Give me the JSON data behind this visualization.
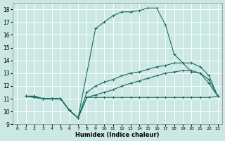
{
  "xlabel": "Humidex (Indice chaleur)",
  "xlim": [
    -0.5,
    23.5
  ],
  "ylim": [
    9,
    18.5
  ],
  "xticks": [
    0,
    1,
    2,
    3,
    4,
    5,
    6,
    7,
    8,
    9,
    10,
    11,
    12,
    13,
    14,
    15,
    16,
    17,
    18,
    19,
    20,
    21,
    22,
    23
  ],
  "yticks": [
    9,
    10,
    11,
    12,
    13,
    14,
    15,
    16,
    17,
    18
  ],
  "bg_color": "#cce8e4",
  "grid_color": "#ffffff",
  "line_color": "#1a6b5e",
  "line1_x": [
    1,
    2,
    3,
    4,
    5,
    6,
    7,
    8,
    9,
    10,
    11,
    12,
    13,
    14,
    15,
    16,
    17,
    18,
    19,
    20,
    21,
    22,
    23
  ],
  "line1_y": [
    11.2,
    11.2,
    11.0,
    11.0,
    11.0,
    10.1,
    9.5,
    11.1,
    11.1,
    11.1,
    11.1,
    11.1,
    11.1,
    11.1,
    11.1,
    11.1,
    11.1,
    11.1,
    11.1,
    11.1,
    11.1,
    11.1,
    11.2
  ],
  "line2_x": [
    1,
    2,
    3,
    4,
    5,
    6,
    7,
    9,
    10,
    11,
    12,
    13,
    14,
    15,
    16,
    17,
    18,
    20,
    21,
    22,
    23
  ],
  "line2_y": [
    11.2,
    11.2,
    11.0,
    11.0,
    11.0,
    10.1,
    9.5,
    16.5,
    17.0,
    17.5,
    17.8,
    17.8,
    17.9,
    18.1,
    18.1,
    16.8,
    14.5,
    13.1,
    13.0,
    12.2,
    11.2
  ],
  "line3_x": [
    1,
    2,
    3,
    4,
    5,
    6,
    7,
    8,
    9,
    10,
    11,
    12,
    13,
    14,
    15,
    16,
    17,
    18,
    19,
    20,
    21,
    22,
    23
  ],
  "line3_y": [
    11.2,
    11.1,
    11.0,
    11.0,
    11.0,
    10.1,
    9.5,
    11.5,
    12.0,
    12.3,
    12.5,
    12.8,
    13.0,
    13.1,
    13.3,
    13.5,
    13.6,
    13.8,
    13.8,
    13.8,
    13.5,
    12.8,
    11.2
  ],
  "line4_x": [
    1,
    2,
    3,
    4,
    5,
    6,
    7,
    8,
    9,
    10,
    11,
    12,
    13,
    14,
    15,
    16,
    17,
    18,
    19,
    20,
    21,
    22,
    23
  ],
  "line4_y": [
    11.2,
    11.1,
    11.0,
    11.0,
    11.0,
    10.1,
    9.5,
    11.1,
    11.3,
    11.5,
    11.7,
    12.0,
    12.2,
    12.4,
    12.6,
    12.8,
    13.0,
    13.1,
    13.2,
    13.2,
    13.0,
    12.5,
    11.2
  ]
}
